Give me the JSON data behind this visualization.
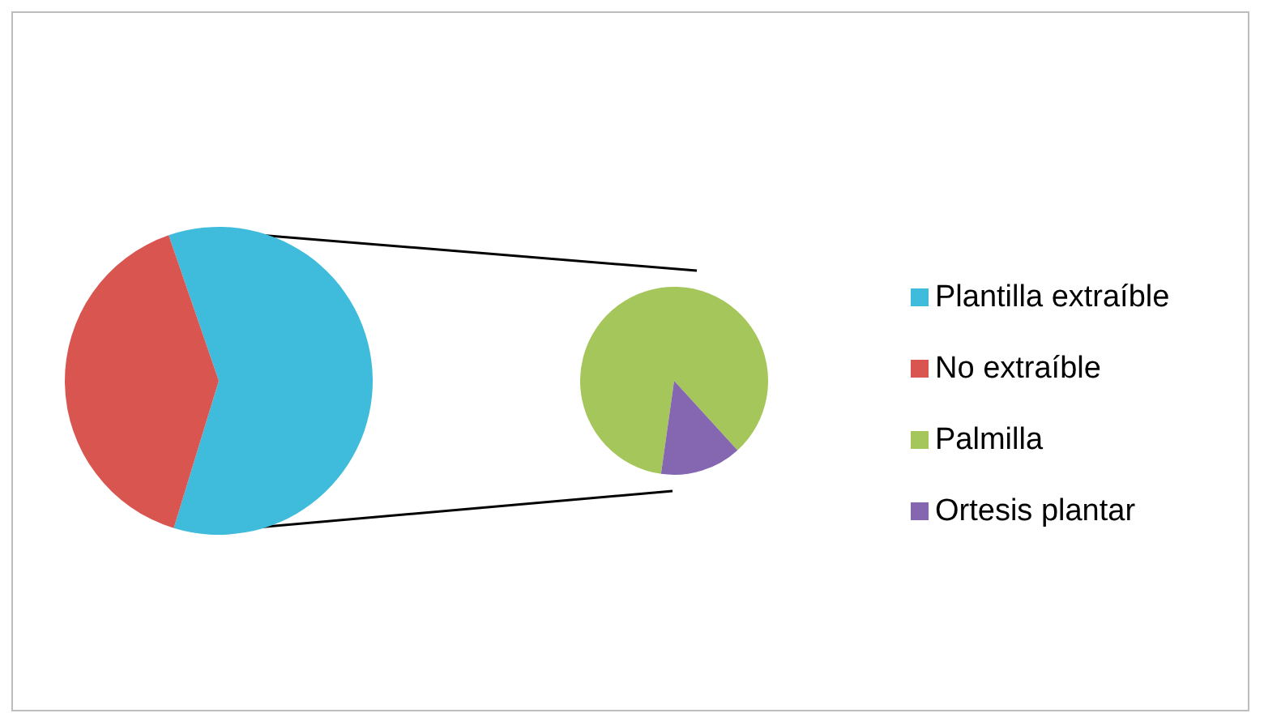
{
  "chart_data": [
    {
      "type": "pie",
      "categories": [
        "Plantilla extraíble",
        "No extraíble"
      ],
      "values": [
        60,
        40
      ],
      "colors": [
        "#3fbcdb",
        "#d9554f"
      ],
      "legend": "right"
    },
    {
      "type": "pie",
      "categories": [
        "Palmilla",
        "Ortesis plantar"
      ],
      "values": [
        86,
        14
      ],
      "colors": [
        "#a4c65a",
        "#8566b0"
      ],
      "legend": "right"
    }
  ]
}
